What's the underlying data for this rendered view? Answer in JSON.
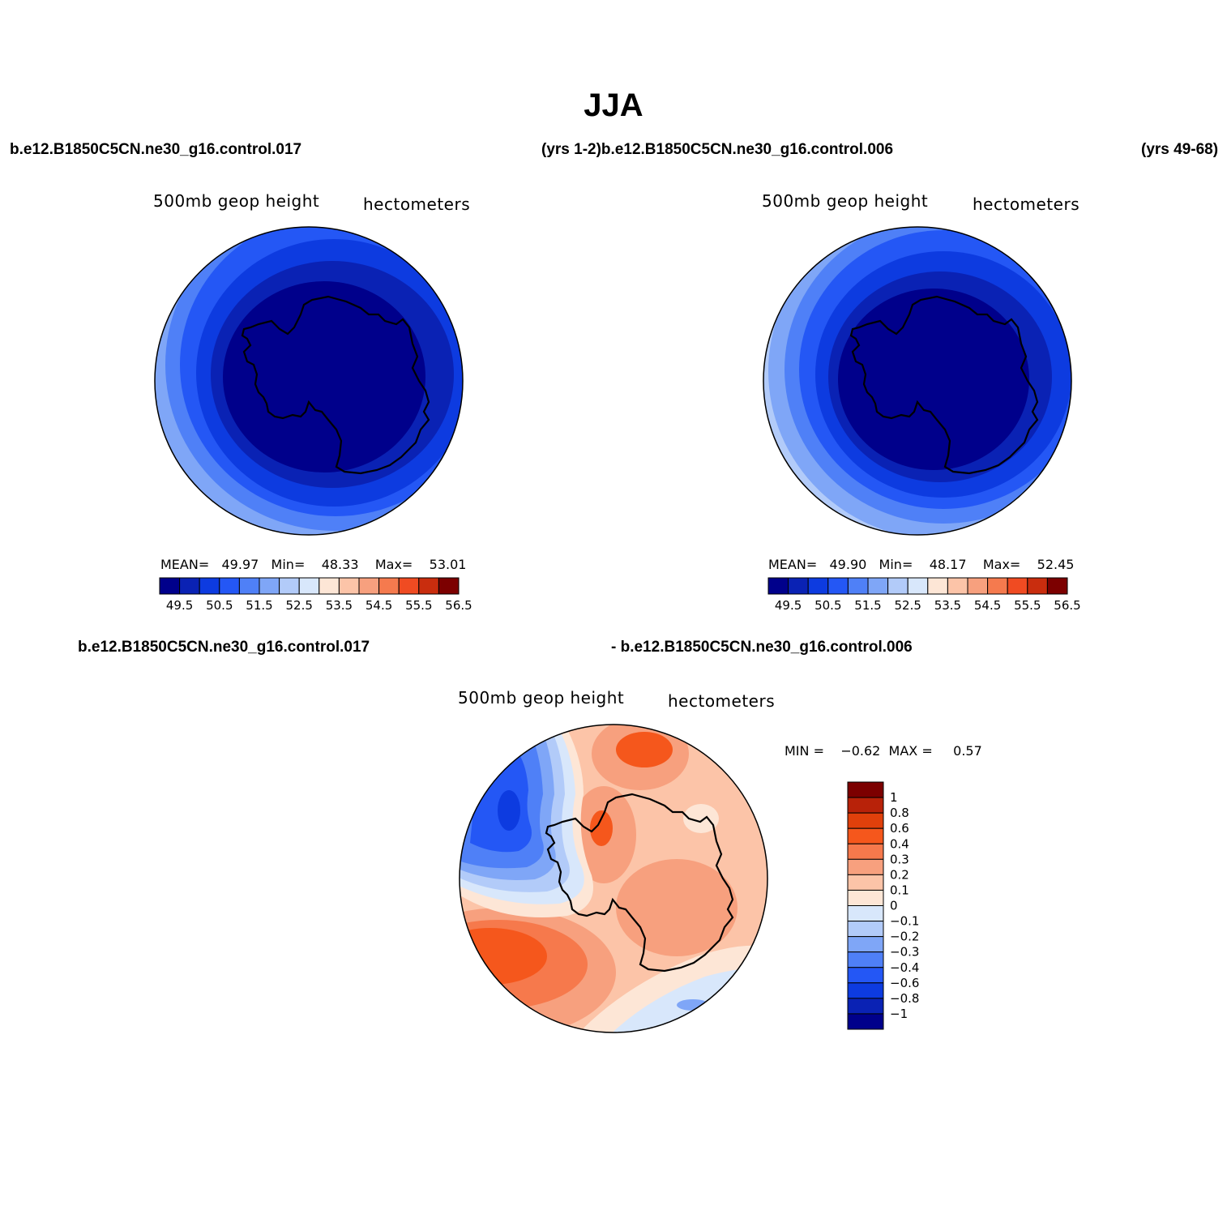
{
  "title": "JJA",
  "case_labels": {
    "left": "b.e12.B1850C5CN.ne30_g16.control.017",
    "mid": "(yrs 1-2)b.e12.B1850C5CN.ne30_g16.control.006",
    "right": "(yrs 49-68)",
    "diff_left": "b.e12.B1850C5CN.ne30_g16.control.017",
    "diff_right": "- b.e12.B1850C5CN.ne30_g16.control.006"
  },
  "panels": [
    {
      "variable": "500mb geop height",
      "units": "hectometers",
      "stats_text": "MEAN=   49.97   Min=    48.33    Max=    53.01",
      "stats": {
        "mean": 49.97,
        "min": 48.33,
        "max": 53.01
      }
    },
    {
      "variable": "500mb geop height",
      "units": "hectometers",
      "stats_text": "MEAN=   49.90   Min=    48.17    Max=    52.45",
      "stats": {
        "mean": 49.9,
        "min": 48.17,
        "max": 52.45
      }
    },
    {
      "variable": "500mb geop height",
      "units": "hectometers",
      "stats_text": "MIN =    −0.62  MAX =     0.57",
      "stats": {
        "min": -0.62,
        "max": 0.57
      }
    }
  ],
  "colorbar_main": {
    "labels": [
      "49.5",
      "50.5",
      "51.5",
      "52.5",
      "53.5",
      "54.5",
      "55.5",
      "56.5"
    ],
    "colors": [
      "#00008b",
      "#0a22b4",
      "#0d3be0",
      "#2457f5",
      "#4f80f7",
      "#7fa6f7",
      "#b2cbf9",
      "#d8e7fb",
      "#fde6d6",
      "#fcc4a8",
      "#f7a07e",
      "#f57a4e",
      "#f04b22",
      "#c92d0e",
      "#7c0000"
    ]
  },
  "colorbar_diff": {
    "labels": [
      "1",
      "0.8",
      "0.6",
      "0.4",
      "0.3",
      "0.2",
      "0.1",
      "0",
      "−0.1",
      "−0.2",
      "−0.3",
      "−0.4",
      "−0.6",
      "−0.8",
      "−1"
    ],
    "colors": [
      "#7c0000",
      "#b82209",
      "#e0400b",
      "#f5571c",
      "#f6794c",
      "#f7a07e",
      "#fcc4a8",
      "#fde6d6",
      "#d8e7fb",
      "#b2cbf9",
      "#7fa6f7",
      "#4f80f7",
      "#2457f5",
      "#0d3be0",
      "#0a22b4",
      "#00008b"
    ]
  }
}
